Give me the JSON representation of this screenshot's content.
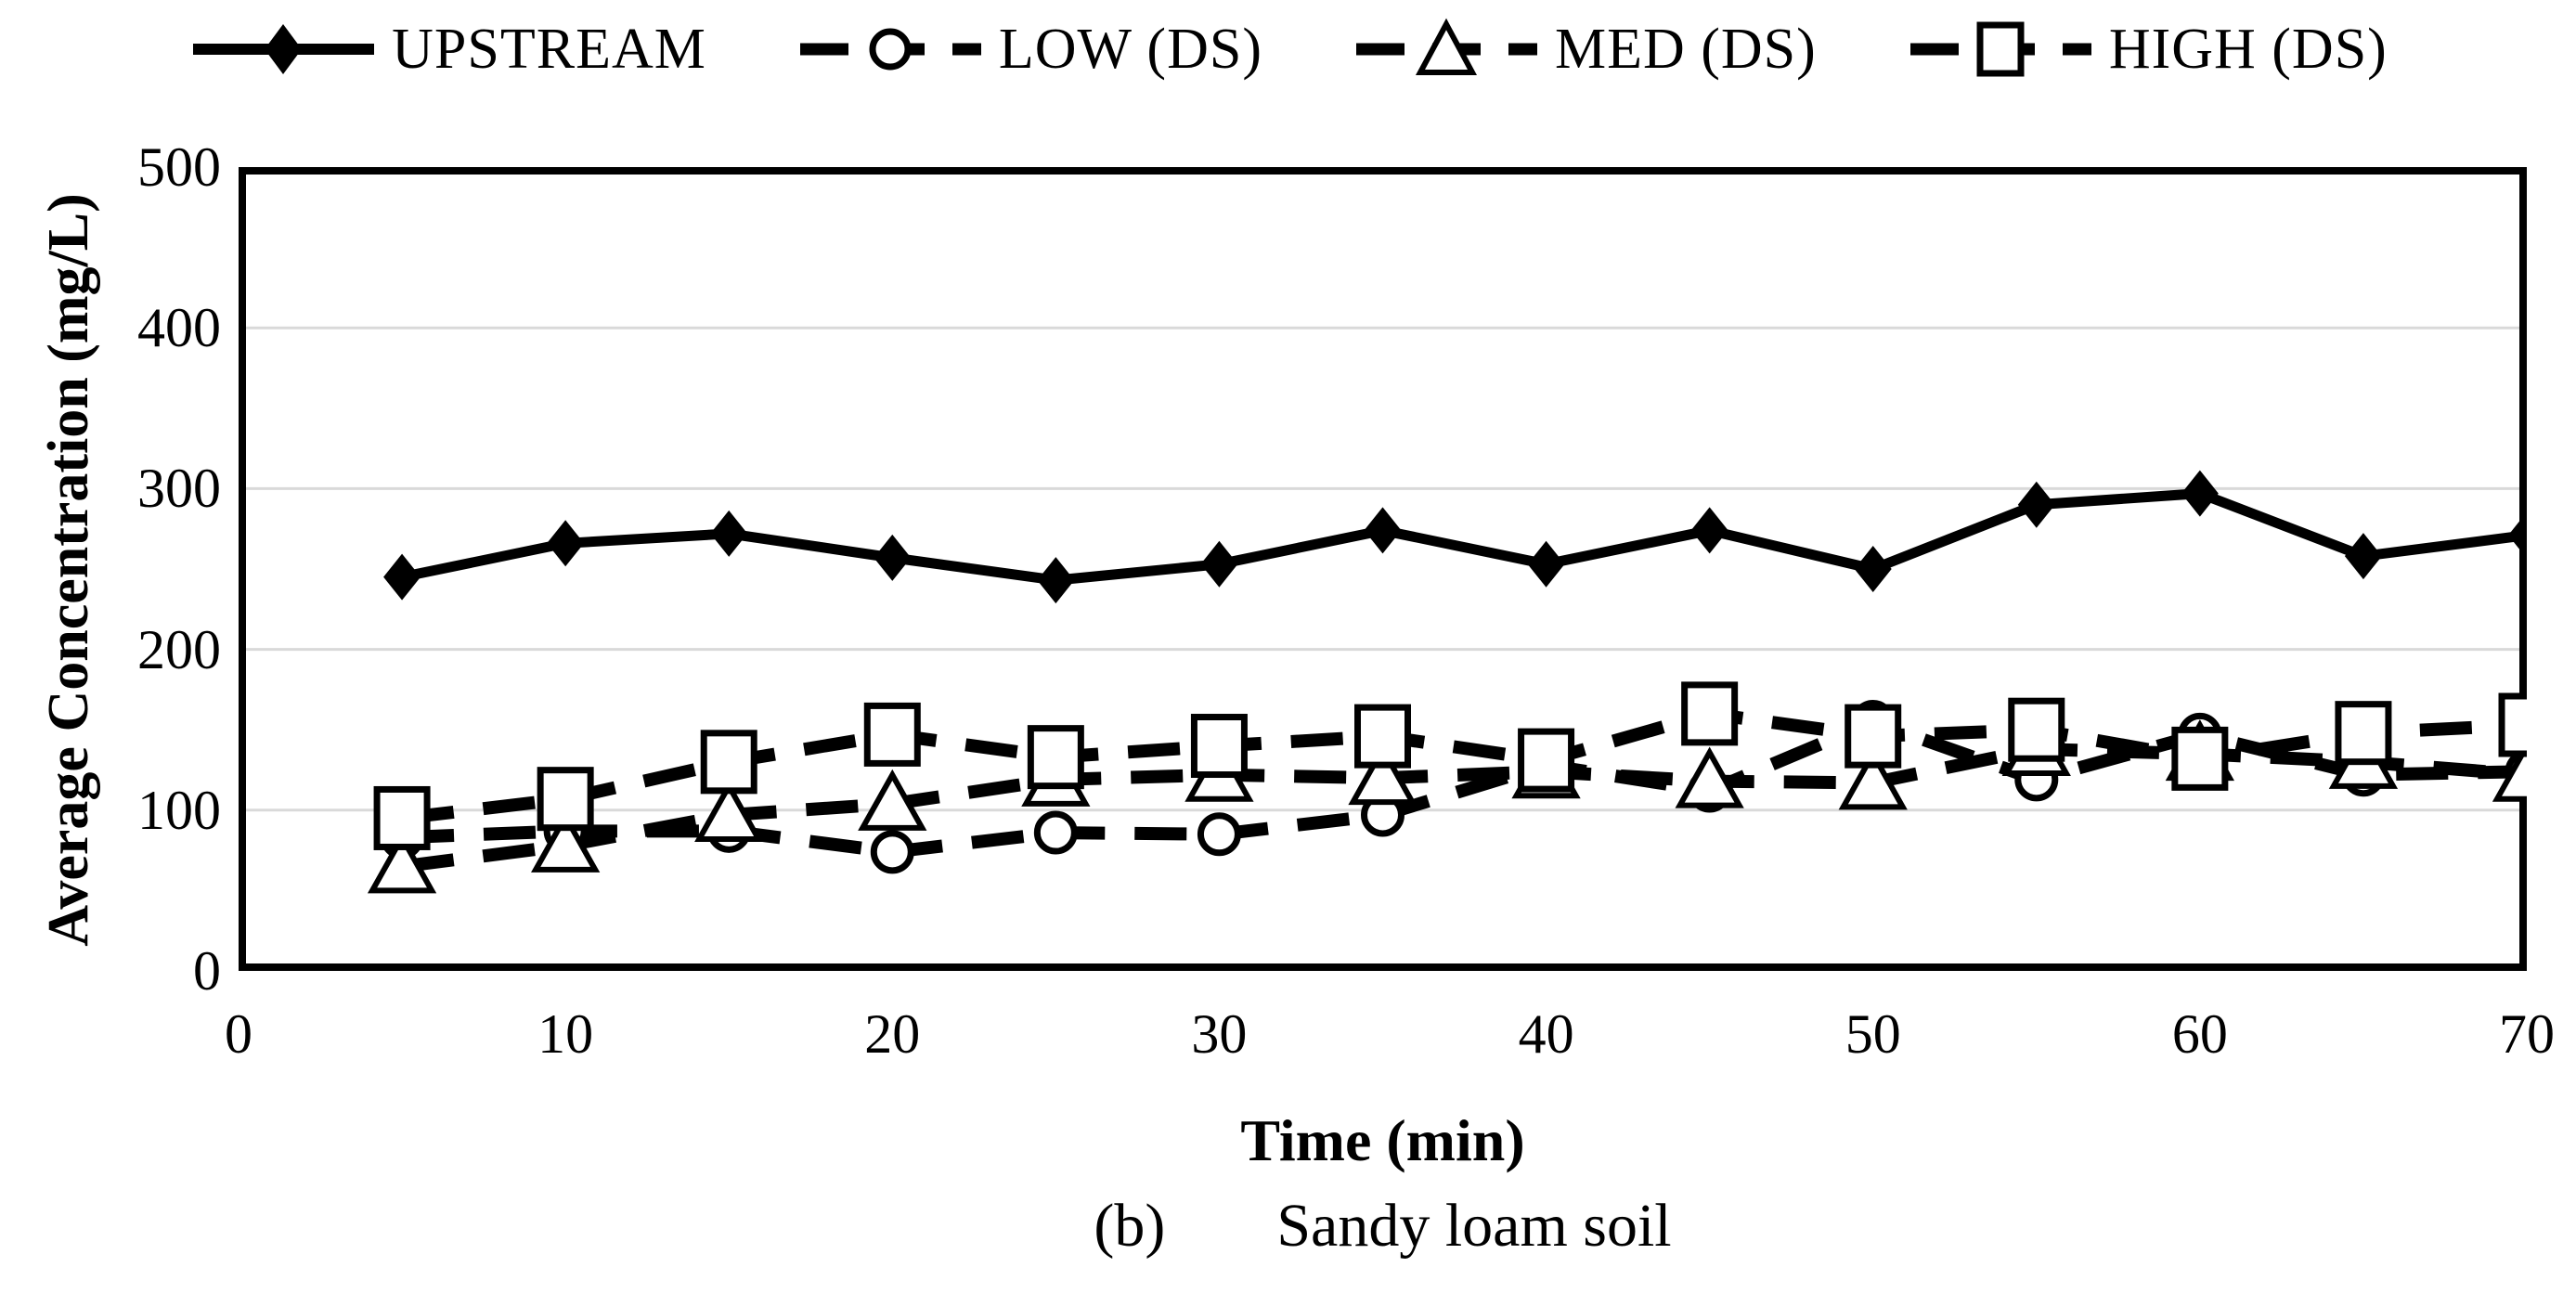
{
  "chart_data": {
    "type": "line",
    "x": [
      5,
      10,
      15,
      20,
      25,
      30,
      35,
      40,
      45,
      50,
      55,
      60,
      65,
      70
    ],
    "series": [
      {
        "name": "UPSTREAM",
        "marker": "diamond",
        "marker_fill": "filled",
        "line": "solid",
        "values": [
          245,
          266,
          272,
          257,
          243,
          253,
          274,
          253,
          274,
          250,
          290,
          297,
          258,
          271
        ]
      },
      {
        "name": "LOW (DS)",
        "marker": "circle",
        "marker_fill": "open",
        "line": "dashed",
        "values": [
          83,
          87,
          87,
          74,
          86,
          85,
          97,
          128,
          112,
          155,
          119,
          147,
          122,
          124
        ]
      },
      {
        "name": "MED (DS)",
        "marker": "triangle",
        "marker_fill": "open",
        "line": "dashed",
        "values": [
          65,
          78,
          97,
          104,
          119,
          122,
          120,
          124,
          118,
          117,
          138,
          135,
          130,
          122
        ]
      },
      {
        "name": "HIGH (DS)",
        "marker": "square",
        "marker_fill": "open",
        "line": "dashed",
        "values": [
          95,
          107,
          130,
          147,
          133,
          140,
          146,
          131,
          160,
          146,
          150,
          132,
          148,
          153
        ]
      }
    ],
    "xlabel": "Time (min)",
    "ylabel": "Average Concentration (mg/L)",
    "xlim": [
      0,
      70
    ],
    "ylim": [
      0,
      500
    ],
    "xticks": [
      0,
      10,
      20,
      30,
      40,
      50,
      60,
      70
    ],
    "yticks": [
      0,
      100,
      200,
      300,
      400,
      500
    ],
    "grid": "horizontal",
    "legend_position": "top",
    "colors": {
      "series": "#000000",
      "grid": "#d9d9d9",
      "frame": "#000000",
      "background": "#ffffff"
    }
  },
  "caption": {
    "index": "(b)",
    "text": "Sandy loam soil"
  }
}
